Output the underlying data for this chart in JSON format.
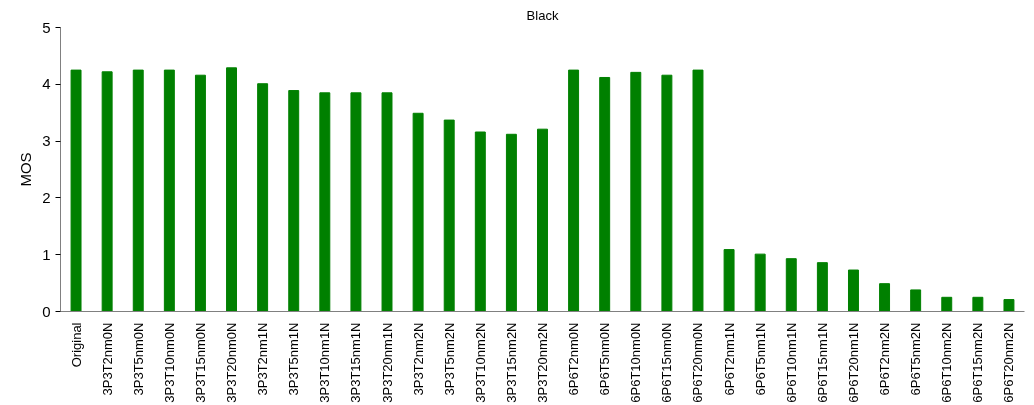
{
  "chart_data": {
    "type": "bar",
    "title": "Black",
    "ylabel": "MOS",
    "categories": [
      "Original",
      "3P3T2nm0N",
      "3P3T5nm0N",
      "3P3T10nm0N",
      "3P3T15nm0N",
      "3P3T20nm0N",
      "3P3T2nm1N",
      "3P3T5nm1N",
      "3P3T10nm1N",
      "3P3T15nm1N",
      "3P3T20nm1N",
      "3P3T2nm2N",
      "3P3T5nm2N",
      "3P3T10nm2N",
      "3P3T15nm2N",
      "3P3T20nm2N",
      "6P6T2nm0N",
      "6P6T5nm0N",
      "6P6T10nm0N",
      "6P6T15nm0N",
      "6P6T20nm0N",
      "6P6T2nm1N",
      "6P6T5nm1N",
      "6P6T10nm1N",
      "6P6T15nm1N",
      "6P6T20nm1N",
      "6P6T2nm2N",
      "6P6T5nm2N",
      "6P6T10nm2N",
      "6P6T15nm2N",
      "6P6T20nm2N"
    ],
    "values": [
      4.25,
      4.22,
      4.25,
      4.25,
      4.16,
      4.29,
      4.01,
      3.89,
      3.85,
      3.85,
      3.85,
      3.49,
      3.37,
      3.16,
      3.12,
      3.21,
      4.25,
      4.12,
      4.21,
      4.16,
      4.25,
      1.09,
      1.01,
      0.93,
      0.86,
      0.73,
      0.49,
      0.38,
      0.25,
      0.25,
      0.21
    ],
    "color": "#008000",
    "ylim": [
      0,
      5
    ],
    "yticks": [
      0,
      1,
      2,
      3,
      4,
      5
    ],
    "grid": false
  }
}
